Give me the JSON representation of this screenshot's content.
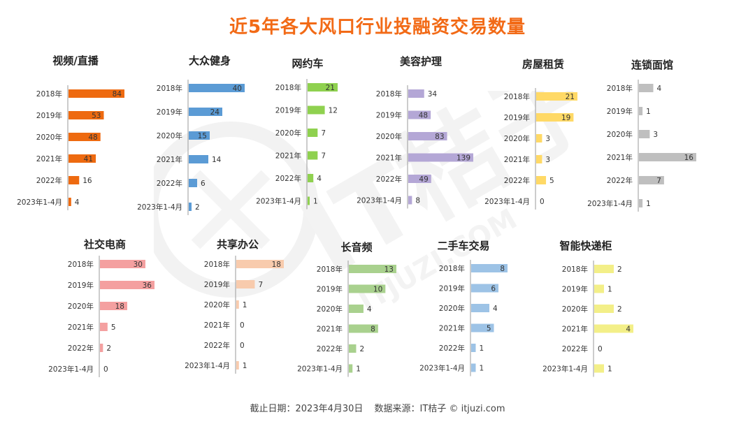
{
  "title": "近5年各大风口行业投融资交易数量",
  "footer": {
    "cutoff": "截止日期：2023年4月30日",
    "source": "数据来源：IT桔子 © itjuzi.com"
  },
  "watermark": {
    "text1": "IT桔子",
    "text2": "ITJUZI.COM"
  },
  "chart_data": [
    {
      "type": "bar",
      "title": "视频/直播",
      "color": "#ee6a10",
      "categories": [
        "2018年",
        "2019年",
        "2020年",
        "2021年",
        "2022年",
        "2023年1-4月"
      ],
      "values": [
        84,
        53,
        48,
        41,
        16,
        4
      ]
    },
    {
      "type": "bar",
      "title": "大众健身",
      "color": "#5b9bd5",
      "categories": [
        "2018年",
        "2019年",
        "2020年",
        "2021年",
        "2022年",
        "2023年1-4月"
      ],
      "values": [
        40,
        24,
        15,
        14,
        6,
        2
      ]
    },
    {
      "type": "bar",
      "title": "网约车",
      "color": "#8fd14f",
      "categories": [
        "2018年",
        "2019年",
        "2020年",
        "2021年",
        "2022年",
        "2023年1-4月"
      ],
      "values": [
        21,
        12,
        7,
        7,
        4,
        1
      ]
    },
    {
      "type": "bar",
      "title": "美容护理",
      "color": "#b4a7d6",
      "categories": [
        "2018年",
        "2019年",
        "2020年",
        "2021年",
        "2022年",
        "2023年1-4月"
      ],
      "values": [
        34,
        48,
        83,
        139,
        49,
        8
      ]
    },
    {
      "type": "bar",
      "title": "房屋租赁",
      "color": "#ffd966",
      "categories": [
        "2018年",
        "2019年",
        "2020年",
        "2021年",
        "2022年",
        "2023年1-4月"
      ],
      "values": [
        21,
        19,
        3,
        3,
        5,
        0
      ]
    },
    {
      "type": "bar",
      "title": "连锁面馆",
      "color": "#bfbfbf",
      "categories": [
        "2018年",
        "2019年",
        "2020年",
        "2021年",
        "2022年",
        "2023年1-4月"
      ],
      "values": [
        4,
        1,
        3,
        16,
        7,
        1
      ]
    },
    {
      "type": "bar",
      "title": "社交电商",
      "color": "#f4a0a0",
      "categories": [
        "2018年",
        "2019年",
        "2020年",
        "2021年",
        "2022年",
        "2023年1-4月"
      ],
      "values": [
        30,
        36,
        18,
        5,
        2,
        0
      ]
    },
    {
      "type": "bar",
      "title": "共享办公",
      "color": "#f8cbad",
      "categories": [
        "2018年",
        "2019年",
        "2020年",
        "2021年",
        "2022年",
        "2023年1-4月"
      ],
      "values": [
        18,
        7,
        1,
        0,
        0,
        1
      ]
    },
    {
      "type": "bar",
      "title": "长音频",
      "color": "#a9d18e",
      "categories": [
        "2018年",
        "2019年",
        "2020年",
        "2021年",
        "2022年",
        "2023年1-4月"
      ],
      "values": [
        13,
        10,
        4,
        8,
        2,
        1
      ]
    },
    {
      "type": "bar",
      "title": "二手车交易",
      "color": "#9dc3e6",
      "categories": [
        "2018年",
        "2019年",
        "2020年",
        "2021年",
        "2022年",
        "2023年1-4月"
      ],
      "values": [
        8,
        6,
        4,
        5,
        1,
        1
      ]
    },
    {
      "type": "bar",
      "title": "智能快递柜",
      "color": "#f3ef88",
      "categories": [
        "2018年",
        "2019年",
        "2020年",
        "2021年",
        "2022年",
        "2023年1-4月"
      ],
      "values": [
        2,
        1,
        2,
        4,
        0,
        1
      ]
    }
  ]
}
